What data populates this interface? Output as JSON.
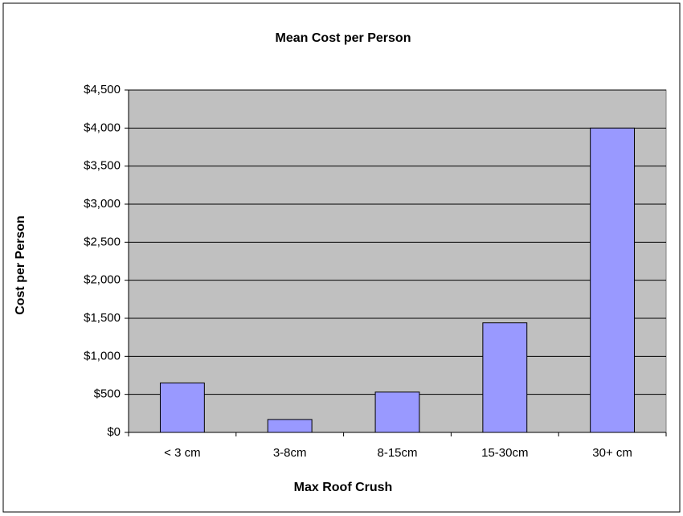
{
  "chart_data": {
    "type": "bar",
    "title": "Mean Cost per Person",
    "x_label": "Max Roof Crush",
    "y_label": "Cost per Person",
    "categories": [
      "< 3 cm",
      "3-8cm",
      "8-15cm",
      "15-30cm",
      "30+ cm"
    ],
    "values": [
      650,
      170,
      530,
      1440,
      4000
    ],
    "color": "#9999ff",
    "ylim": [
      0,
      4500
    ],
    "yticks": [
      {
        "value": 0,
        "label": "$0"
      },
      {
        "value": 500,
        "label": "$500"
      },
      {
        "value": 1000,
        "label": "$1,000"
      },
      {
        "value": 1500,
        "label": "$1,500"
      },
      {
        "value": 2000,
        "label": "$2,000"
      },
      {
        "value": 2500,
        "label": "$2,500"
      },
      {
        "value": 3000,
        "label": "$3,000"
      },
      {
        "value": 3500,
        "label": "$3,500"
      },
      {
        "value": 4000,
        "label": "$4,000"
      },
      {
        "value": 4500,
        "label": "$4,500"
      }
    ],
    "grid": true
  }
}
